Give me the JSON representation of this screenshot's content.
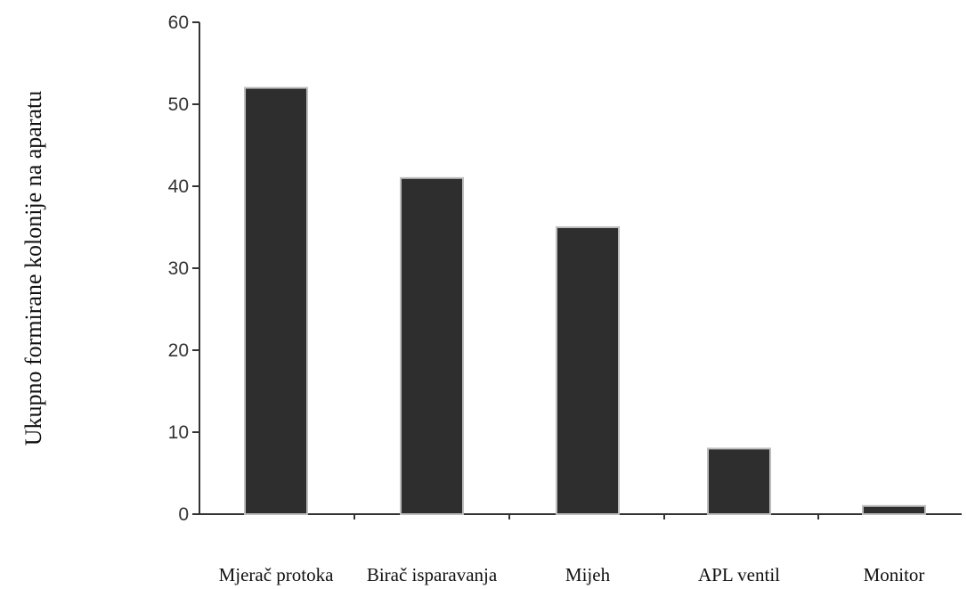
{
  "chart_data": {
    "type": "bar",
    "title": "",
    "xlabel": "",
    "ylabel": "Ukupno formirane kolonije na aparatu",
    "categories": [
      "Mjerač protoka",
      "Birač isparavanja",
      "Mijeh",
      "APL ventil",
      "Monitor"
    ],
    "values": [
      52,
      41,
      35,
      8,
      1
    ],
    "ylim": [
      0,
      60
    ],
    "yticks": [
      "0",
      "10",
      "20",
      "30",
      "40",
      "50",
      "60"
    ],
    "grid": false,
    "legend": "none",
    "colors": {
      "bar": "#2e2e2e",
      "bar_edge": "#bdbdbd",
      "axis": "#333333"
    }
  }
}
